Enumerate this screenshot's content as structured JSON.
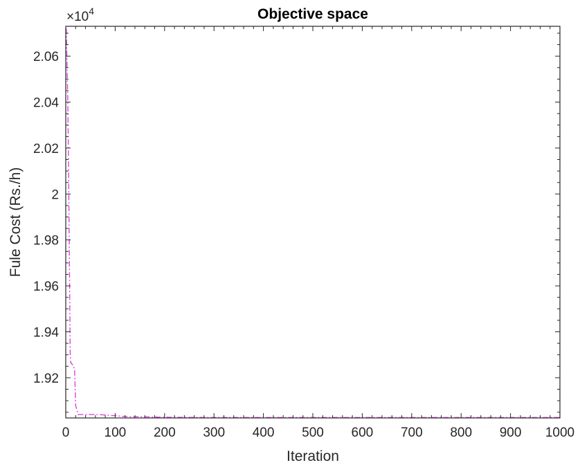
{
  "chart_data": {
    "type": "line",
    "title": "Objective space",
    "xlabel": "Iteration",
    "ylabel": "Fule Cost (Rs./h)",
    "y_exponent_label": "×10",
    "y_exponent_power": "4",
    "y_scale_factor": 10000,
    "xlim": [
      0,
      1000
    ],
    "ylim": [
      19025,
      20730
    ],
    "x_ticks": [
      0,
      100,
      200,
      300,
      400,
      500,
      600,
      700,
      800,
      900,
      1000
    ],
    "x_tick_labels": [
      "0",
      "100",
      "200",
      "300",
      "400",
      "500",
      "600",
      "700",
      "800",
      "900",
      "1000"
    ],
    "y_ticks": [
      19200,
      19400,
      19600,
      19800,
      20000,
      20200,
      20400,
      20600
    ],
    "y_tick_labels": [
      "1.92",
      "1.94",
      "1.96",
      "1.98",
      "2",
      "2.02",
      "2.04",
      "2.06"
    ],
    "grid": false,
    "series": [
      {
        "color": "#e040e0",
        "line_style": "dash-dot",
        "x": [
          1,
          2,
          3,
          4,
          5,
          6,
          7,
          8,
          9,
          10,
          11,
          12,
          15,
          17,
          18,
          20,
          25,
          40,
          60,
          80,
          90,
          100,
          110,
          130,
          150,
          200,
          300,
          400,
          500,
          600,
          700,
          800,
          900,
          1000
        ],
        "y": [
          20720,
          20620,
          20520,
          20420,
          20250,
          20050,
          19800,
          19550,
          19300,
          19265,
          19265,
          19260,
          19255,
          19240,
          19230,
          19080,
          19040,
          19040,
          19040,
          19038,
          19036,
          19035,
          19033,
          19030,
          19030,
          19028,
          19027,
          19027,
          19027,
          19027,
          19027,
          19027,
          19027,
          19027
        ]
      }
    ]
  }
}
